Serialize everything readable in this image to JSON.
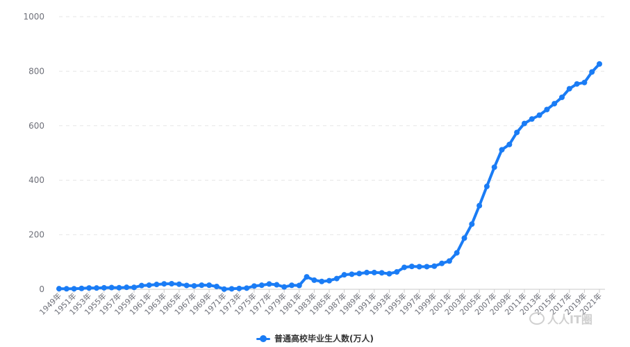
{
  "chart_data": {
    "type": "line",
    "title": "",
    "xlabel": "",
    "ylabel": "",
    "ylim": [
      0,
      1000
    ],
    "yticks": [
      0,
      200,
      400,
      600,
      800,
      1000
    ],
    "grid": true,
    "legend_position": "bottom-center",
    "x": [
      "1949年",
      "1950年",
      "1951年",
      "1952年",
      "1953年",
      "1954年",
      "1955年",
      "1956年",
      "1957年",
      "1958年",
      "1959年",
      "1960年",
      "1961年",
      "1962年",
      "1963年",
      "1964年",
      "1965年",
      "1966年",
      "1967年",
      "1968年",
      "1969年",
      "1970年",
      "1971年",
      "1972年",
      "1973年",
      "1974年",
      "1975年",
      "1976年",
      "1977年",
      "1978年",
      "1979年",
      "1980年",
      "1981年",
      "1982年",
      "1983年",
      "1984年",
      "1985年",
      "1986年",
      "1987年",
      "1988年",
      "1989年",
      "1990年",
      "1991年",
      "1992年",
      "1993年",
      "1994年",
      "1995年",
      "1996年",
      "1997年",
      "1998年",
      "1999年",
      "2000年",
      "2001年",
      "2002年",
      "2003年",
      "2004年",
      "2005年",
      "2006年",
      "2007年",
      "2008年",
      "2009年",
      "2010年",
      "2011年",
      "2012年",
      "2013年",
      "2014年",
      "2015年",
      "2016年",
      "2017年",
      "2018年",
      "2019年",
      "2020年",
      "2021年"
    ],
    "x_tick_labels": [
      "1949年",
      "1951年",
      "1953年",
      "1955年",
      "1957年",
      "1959年",
      "1961年",
      "1963年",
      "1965年",
      "1967年",
      "1969年",
      "1971年",
      "1973年",
      "1975年",
      "1977年",
      "1979年",
      "1981年",
      "1983年",
      "1985年",
      "1987年",
      "1989年",
      "1991年",
      "1993年",
      "1995年",
      "1997年",
      "1999年",
      "2001年",
      "2003年",
      "2005年",
      "2007年",
      "2009年",
      "2011年",
      "2013年",
      "2015年",
      "2017年",
      "2019年",
      "2021年"
    ],
    "series": [
      {
        "name": "普通高校毕业生人数(万人)",
        "color": "#1a7cf5",
        "values": [
          2.1,
          1.8,
          1.9,
          3.2,
          4.8,
          4.7,
          5.5,
          6.3,
          5.6,
          7.2,
          7.0,
          13.6,
          15.1,
          17.7,
          19.9,
          20.4,
          18.6,
          14.1,
          12.5,
          15.0,
          15.0,
          10.3,
          0.6,
          1.7,
          3.0,
          4.3,
          11.9,
          14.9,
          19.4,
          16.5,
          8.5,
          14.7,
          14.0,
          45.7,
          33.5,
          28.7,
          31.6,
          39.3,
          53.2,
          55.3,
          57.6,
          61.4,
          61.4,
          60.4,
          57.1,
          63.7,
          80.5,
          83.9,
          82.9,
          83.0,
          84.8,
          95.0,
          103.6,
          133.7,
          187.7,
          239.1,
          306.8,
          377.5,
          447.8,
          511.9,
          531.1,
          575.4,
          608.2,
          624.7,
          638.7,
          659.4,
          680.9,
          704.2,
          735.8,
          753.3,
          758.5,
          797.2,
          826.5
        ]
      }
    ]
  },
  "legend": {
    "label": "普通高校毕业生人数(万人)",
    "color": "#1a7cf5"
  },
  "watermark": {
    "text": "人人IT圈"
  }
}
